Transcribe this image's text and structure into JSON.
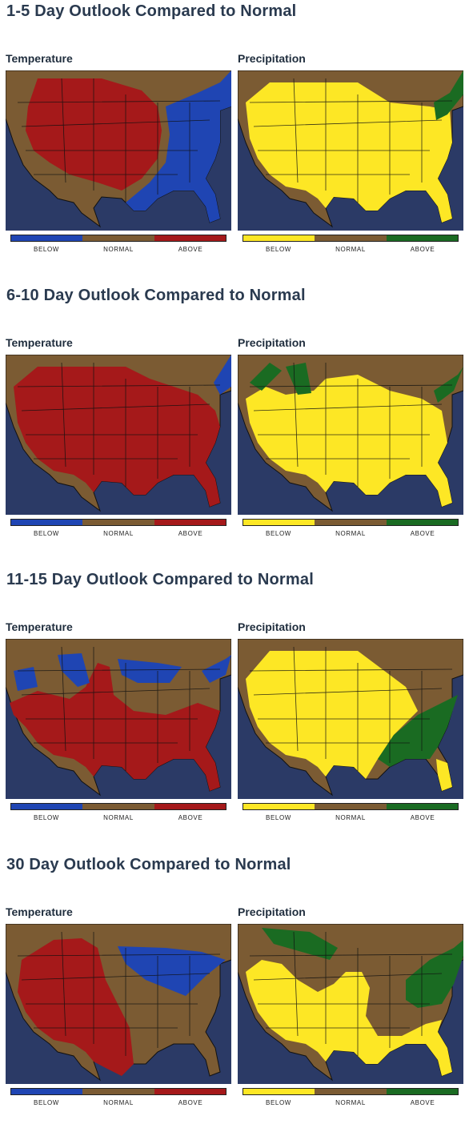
{
  "colors": {
    "ocean": "#2b3a66",
    "land": "#7b5b33",
    "border": "#111111",
    "temp_below": "#1f45b3",
    "temp_normal": "#7b5b33",
    "temp_above": "#a5191a",
    "prcp_below": "#fde725",
    "prcp_normal": "#7b5b33",
    "prcp_above": "#1a6b22"
  },
  "panel_labels": {
    "temperature": "Temperature",
    "precipitation": "Precipitation"
  },
  "legend": {
    "temperature": [
      "BELOW",
      "NORMAL",
      "ABOVE"
    ],
    "precipitation": [
      "BELOW",
      "NORMAL",
      "ABOVE"
    ]
  },
  "outlooks": [
    {
      "title": "1-5 Day Outlook Compared to Normal",
      "temperature": {
        "map": "temp-1-5"
      },
      "precipitation": {
        "map": "prcp-1-5"
      }
    },
    {
      "title": "6-10 Day Outlook Compared to Normal",
      "temperature": {
        "map": "temp-6-10"
      },
      "precipitation": {
        "map": "prcp-6-10"
      }
    },
    {
      "title": "11-15 Day Outlook Compared to Normal",
      "temperature": {
        "map": "temp-11-15"
      },
      "precipitation": {
        "map": "prcp-11-15"
      }
    },
    {
      "title": "30 Day Outlook Compared to Normal",
      "temperature": {
        "map": "temp-30"
      },
      "precipitation": {
        "map": "prcp-30"
      }
    }
  ]
}
